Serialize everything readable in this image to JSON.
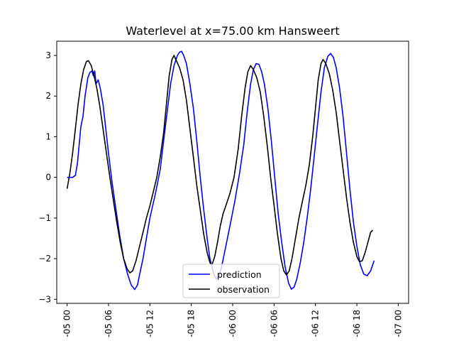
{
  "chart_data": {
    "type": "line",
    "title": "Waterlevel at x=75.00 km Hansweert",
    "xlabel": "",
    "ylabel": "",
    "x_ticks": [
      "-05 00",
      "-05 06",
      "-05 12",
      "-05 18",
      "-06 00",
      "-06 06",
      "-06 12",
      "-06 18",
      "-07 00"
    ],
    "y_ticks": [
      "−3",
      "−2",
      "−1",
      "0",
      "1",
      "2",
      "3"
    ],
    "xlim_hours": [
      -1.5,
      49.5
    ],
    "ylim": [
      -3.1,
      3.35
    ],
    "grid": false,
    "legend_position": "bottom-center",
    "series": [
      {
        "name": "prediction",
        "color": "#0000ff",
        "points": [
          [
            0.0,
            0.0
          ],
          [
            0.8,
            0.0
          ],
          [
            1.2,
            0.05
          ],
          [
            1.5,
            0.35
          ],
          [
            1.8,
            0.9
          ],
          [
            2.0,
            1.25
          ],
          [
            2.3,
            1.5
          ],
          [
            2.6,
            2.0
          ],
          [
            3.0,
            2.45
          ],
          [
            3.3,
            2.58
          ],
          [
            3.6,
            2.62
          ],
          [
            3.8,
            2.5
          ],
          [
            4.0,
            2.62
          ],
          [
            4.2,
            2.3
          ],
          [
            4.5,
            2.4
          ],
          [
            4.8,
            2.2
          ],
          [
            5.2,
            1.8
          ],
          [
            5.6,
            1.2
          ],
          [
            6.0,
            0.6
          ],
          [
            6.5,
            -0.1
          ],
          [
            7.0,
            -0.7
          ],
          [
            7.6,
            -1.4
          ],
          [
            8.2,
            -2.0
          ],
          [
            8.8,
            -2.4
          ],
          [
            9.3,
            -2.65
          ],
          [
            9.8,
            -2.76
          ],
          [
            10.2,
            -2.65
          ],
          [
            10.5,
            -2.4
          ],
          [
            11.0,
            -2.0
          ],
          [
            11.5,
            -1.5
          ],
          [
            12.0,
            -1.0
          ],
          [
            12.8,
            -0.4
          ],
          [
            13.5,
            0.2
          ],
          [
            14.0,
            0.9
          ],
          [
            14.5,
            1.6
          ],
          [
            15.0,
            2.3
          ],
          [
            15.5,
            2.75
          ],
          [
            16.0,
            3.0
          ],
          [
            16.3,
            3.08
          ],
          [
            16.6,
            3.1
          ],
          [
            16.9,
            3.0
          ],
          [
            17.3,
            2.8
          ],
          [
            17.8,
            2.3
          ],
          [
            18.3,
            1.7
          ],
          [
            18.8,
            0.9
          ],
          [
            19.3,
            0.0
          ],
          [
            19.8,
            -0.8
          ],
          [
            20.3,
            -1.5
          ],
          [
            20.7,
            -2.0
          ],
          [
            21.2,
            -2.35
          ],
          [
            21.6,
            -2.5
          ],
          [
            22.0,
            -2.45
          ],
          [
            22.4,
            -2.2
          ],
          [
            23.0,
            -1.7
          ],
          [
            23.6,
            -1.2
          ],
          [
            24.3,
            -0.6
          ],
          [
            25.0,
            0.1
          ],
          [
            25.6,
            0.8
          ],
          [
            26.1,
            1.6
          ],
          [
            26.6,
            2.3
          ],
          [
            27.0,
            2.65
          ],
          [
            27.4,
            2.8
          ],
          [
            27.8,
            2.78
          ],
          [
            28.2,
            2.6
          ],
          [
            28.6,
            2.3
          ],
          [
            29.1,
            1.7
          ],
          [
            29.6,
            0.9
          ],
          [
            30.1,
            0.0
          ],
          [
            30.6,
            -0.9
          ],
          [
            31.1,
            -1.6
          ],
          [
            31.6,
            -2.2
          ],
          [
            32.1,
            -2.6
          ],
          [
            32.5,
            -2.75
          ],
          [
            32.9,
            -2.7
          ],
          [
            33.3,
            -2.5
          ],
          [
            33.8,
            -2.1
          ],
          [
            34.3,
            -1.6
          ],
          [
            34.8,
            -1.0
          ],
          [
            35.3,
            -0.3
          ],
          [
            35.8,
            0.5
          ],
          [
            36.3,
            1.3
          ],
          [
            36.8,
            2.1
          ],
          [
            37.3,
            2.7
          ],
          [
            37.8,
            2.98
          ],
          [
            38.2,
            3.05
          ],
          [
            38.6,
            2.95
          ],
          [
            39.0,
            2.7
          ],
          [
            39.5,
            2.2
          ],
          [
            40.0,
            1.5
          ],
          [
            40.5,
            0.6
          ],
          [
            41.0,
            -0.3
          ],
          [
            41.5,
            -1.1
          ],
          [
            42.0,
            -1.7
          ],
          [
            42.5,
            -2.15
          ],
          [
            43.0,
            -2.38
          ],
          [
            43.5,
            -2.42
          ],
          [
            44.0,
            -2.3
          ],
          [
            44.5,
            -2.05
          ]
        ]
      },
      {
        "name": "observation",
        "color": "#000000",
        "points": [
          [
            0.0,
            -0.28
          ],
          [
            0.4,
            0.1
          ],
          [
            0.8,
            0.6
          ],
          [
            1.2,
            1.2
          ],
          [
            1.6,
            1.8
          ],
          [
            2.0,
            2.3
          ],
          [
            2.4,
            2.65
          ],
          [
            2.8,
            2.85
          ],
          [
            3.1,
            2.87
          ],
          [
            3.5,
            2.75
          ],
          [
            3.9,
            2.5
          ],
          [
            4.3,
            2.2
          ],
          [
            4.7,
            1.8
          ],
          [
            5.2,
            1.2
          ],
          [
            5.7,
            0.6
          ],
          [
            6.2,
            0.0
          ],
          [
            6.7,
            -0.55
          ],
          [
            7.2,
            -1.1
          ],
          [
            7.7,
            -1.6
          ],
          [
            8.2,
            -2.0
          ],
          [
            8.7,
            -2.25
          ],
          [
            9.1,
            -2.35
          ],
          [
            9.5,
            -2.3
          ],
          [
            10.0,
            -2.05
          ],
          [
            10.5,
            -1.7
          ],
          [
            11.0,
            -1.35
          ],
          [
            11.5,
            -1.0
          ],
          [
            12.0,
            -0.7
          ],
          [
            12.5,
            -0.35
          ],
          [
            13.0,
            0.0
          ],
          [
            13.5,
            0.5
          ],
          [
            14.0,
            1.1
          ],
          [
            14.4,
            1.8
          ],
          [
            14.8,
            2.5
          ],
          [
            15.2,
            2.9
          ],
          [
            15.5,
            3.0
          ],
          [
            15.9,
            2.85
          ],
          [
            16.3,
            2.7
          ],
          [
            16.8,
            2.4
          ],
          [
            17.3,
            1.9
          ],
          [
            17.8,
            1.2
          ],
          [
            18.3,
            0.5
          ],
          [
            18.8,
            -0.2
          ],
          [
            19.3,
            -0.8
          ],
          [
            19.8,
            -1.4
          ],
          [
            20.3,
            -1.85
          ],
          [
            20.7,
            -2.1
          ],
          [
            21.0,
            -2.15
          ],
          [
            21.4,
            -1.95
          ],
          [
            21.8,
            -1.6
          ],
          [
            22.2,
            -1.2
          ],
          [
            22.6,
            -0.9
          ],
          [
            23.0,
            -0.7
          ],
          [
            23.6,
            -0.4
          ],
          [
            24.2,
            0.0
          ],
          [
            24.8,
            0.7
          ],
          [
            25.3,
            1.5
          ],
          [
            25.8,
            2.2
          ],
          [
            26.2,
            2.6
          ],
          [
            26.6,
            2.75
          ],
          [
            27.0,
            2.65
          ],
          [
            27.5,
            2.45
          ],
          [
            28.0,
            2.1
          ],
          [
            28.5,
            1.5
          ],
          [
            29.0,
            0.8
          ],
          [
            29.5,
            0.0
          ],
          [
            30.0,
            -0.7
          ],
          [
            30.5,
            -1.4
          ],
          [
            31.0,
            -2.0
          ],
          [
            31.4,
            -2.3
          ],
          [
            31.8,
            -2.4
          ],
          [
            32.2,
            -2.3
          ],
          [
            32.6,
            -2.0
          ],
          [
            33.1,
            -1.5
          ],
          [
            33.6,
            -1.0
          ],
          [
            34.1,
            -0.6
          ],
          [
            34.6,
            -0.2
          ],
          [
            35.1,
            0.3
          ],
          [
            35.6,
            1.0
          ],
          [
            36.0,
            1.7
          ],
          [
            36.4,
            2.4
          ],
          [
            36.8,
            2.8
          ],
          [
            37.1,
            2.9
          ],
          [
            37.5,
            2.8
          ],
          [
            38.0,
            2.55
          ],
          [
            38.5,
            2.15
          ],
          [
            39.0,
            1.6
          ],
          [
            39.5,
            0.9
          ],
          [
            40.0,
            0.2
          ],
          [
            40.5,
            -0.5
          ],
          [
            41.0,
            -1.1
          ],
          [
            41.5,
            -1.6
          ],
          [
            42.0,
            -1.95
          ],
          [
            42.4,
            -2.08
          ],
          [
            42.8,
            -2.05
          ],
          [
            43.2,
            -1.85
          ],
          [
            43.6,
            -1.6
          ],
          [
            44.0,
            -1.35
          ],
          [
            44.3,
            -1.3
          ]
        ]
      }
    ]
  }
}
